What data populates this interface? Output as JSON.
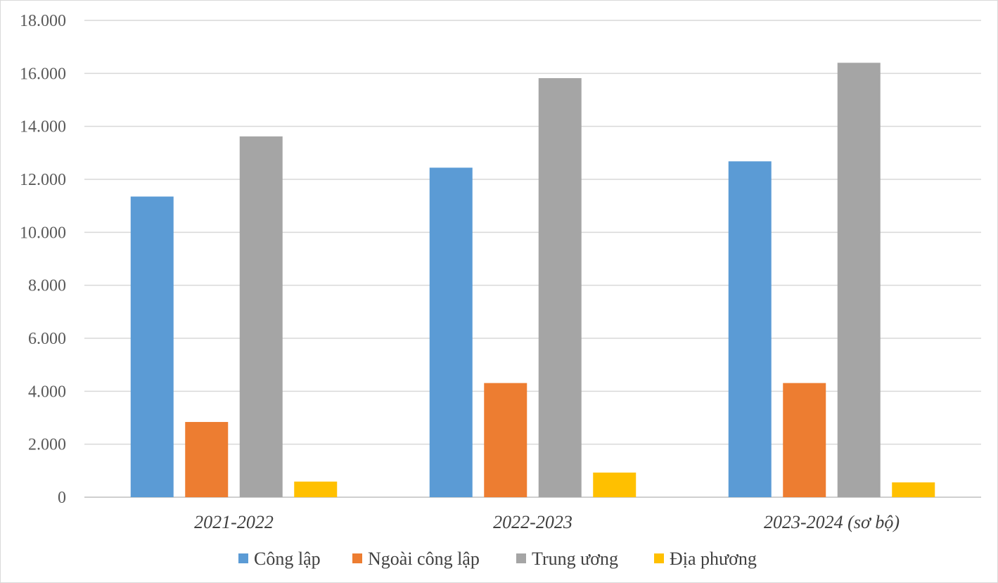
{
  "chart_data": {
    "type": "bar",
    "categories": [
      "2021-2022",
      "2022-2023",
      "2023-2024 (sơ bộ)"
    ],
    "series": [
      {
        "name": "Công lập",
        "values": [
          11350,
          12440,
          12680
        ],
        "color": "#5B9BD5"
      },
      {
        "name": "Ngoài công lập",
        "values": [
          2840,
          4310,
          4310
        ],
        "color": "#ED7D31"
      },
      {
        "name": "Trung ương",
        "values": [
          13620,
          15820,
          16400
        ],
        "color": "#A5A5A5"
      },
      {
        "name": "Địa phương",
        "values": [
          590,
          930,
          560
        ],
        "color": "#FFC000"
      }
    ],
    "yticks": [
      "0",
      "2.000",
      "4.000",
      "6.000",
      "8.000",
      "10.000",
      "12.000",
      "14.000",
      "16.000",
      "18.000"
    ],
    "ylim": [
      0,
      18000
    ],
    "grid": true,
    "legend_position": "bottom",
    "title": "",
    "xlabel": "",
    "ylabel": ""
  }
}
